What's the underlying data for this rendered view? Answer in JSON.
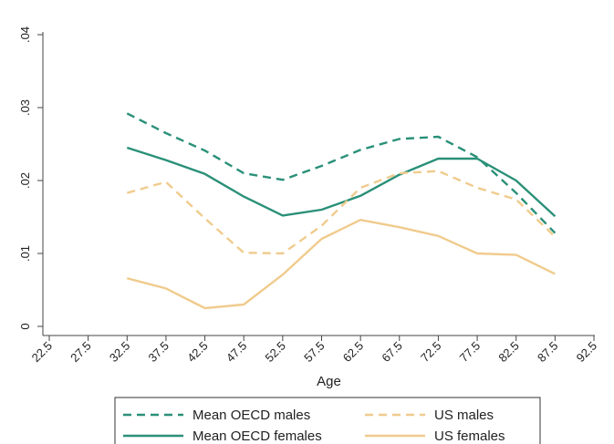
{
  "chart_data": {
    "type": "line",
    "title": "",
    "xlabel": "Age",
    "ylabel": "",
    "x": [
      22.5,
      27.5,
      32.5,
      37.5,
      42.5,
      47.5,
      52.5,
      57.5,
      62.5,
      67.5,
      72.5,
      77.5,
      82.5,
      87.5,
      92.5
    ],
    "x_tick_labels": [
      "22.5",
      "27.5",
      "32.5",
      "37.5",
      "42.5",
      "47.5",
      "52.5",
      "57.5",
      "62.5",
      "67.5",
      "72.5",
      "77.5",
      "82.5",
      "87.5",
      "92.5"
    ],
    "y_tick_labels": [
      "0",
      ".01",
      ".02",
      ".03",
      ".04"
    ],
    "y_ticks": [
      0,
      0.01,
      0.02,
      0.03,
      0.04
    ],
    "xlim": [
      22.5,
      92.5
    ],
    "ylim": [
      0,
      0.04
    ],
    "grid": false,
    "legend_position": "bottom",
    "series": [
      {
        "name": "Mean OECD males",
        "color": "#2a9078",
        "dash": "dashed",
        "x": [
          32.5,
          37.5,
          42.5,
          47.5,
          52.5,
          57.5,
          62.5,
          67.5,
          72.5,
          77.5,
          82.5,
          87.5
        ],
        "values": [
          0.0292,
          0.0265,
          0.0241,
          0.021,
          0.0201,
          0.022,
          0.0242,
          0.0257,
          0.026,
          0.0232,
          0.0183,
          0.0128
        ]
      },
      {
        "name": "Mean OECD females",
        "color": "#2a9078",
        "dash": "solid",
        "x": [
          32.5,
          37.5,
          42.5,
          47.5,
          52.5,
          57.5,
          62.5,
          67.5,
          72.5,
          77.5,
          82.5,
          87.5
        ],
        "values": [
          0.0245,
          0.0228,
          0.0209,
          0.0178,
          0.0152,
          0.016,
          0.0179,
          0.0208,
          0.023,
          0.023,
          0.02,
          0.0151
        ]
      },
      {
        "name": "US males",
        "color": "#f0cb8d",
        "dash": "dashed",
        "x": [
          32.5,
          37.5,
          42.5,
          47.5,
          52.5,
          57.5,
          62.5,
          67.5,
          72.5,
          77.5,
          82.5,
          87.5
        ],
        "values": [
          0.0183,
          0.0198,
          0.0148,
          0.0101,
          0.01,
          0.0138,
          0.019,
          0.021,
          0.0213,
          0.019,
          0.0174,
          0.0123
        ]
      },
      {
        "name": "US females",
        "color": "#f0cb8d",
        "dash": "solid",
        "x": [
          32.5,
          37.5,
          42.5,
          47.5,
          52.5,
          57.5,
          62.5,
          67.5,
          72.5,
          77.5,
          82.5,
          87.5
        ],
        "values": [
          0.0066,
          0.0052,
          0.0025,
          0.003,
          0.0071,
          0.012,
          0.0146,
          0.0136,
          0.0124,
          0.01,
          0.0098,
          0.0072
        ]
      }
    ]
  }
}
